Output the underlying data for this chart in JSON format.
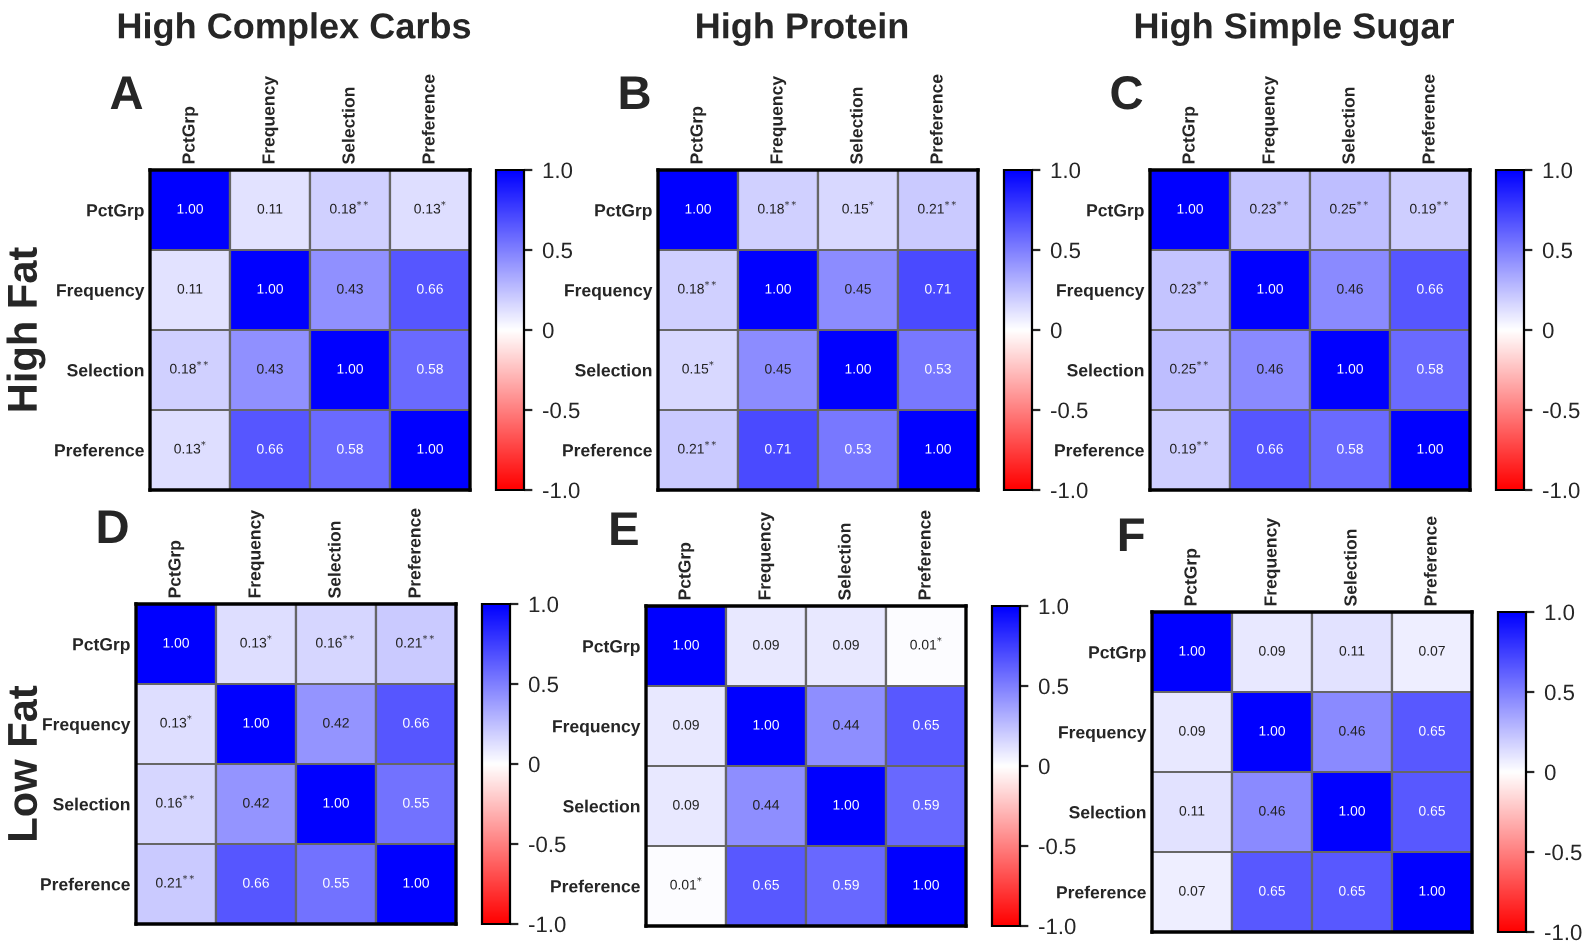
{
  "chart_data": [
    {
      "type": "heatmap",
      "title": "A",
      "subtitle": "High Complex Carbs",
      "ylabel": "High Fat",
      "categories": [
        "PctGrp",
        "Frequency",
        "Selection",
        "Preference"
      ],
      "y_categories": [
        "PctGrp",
        "Frequency",
        "Selection",
        "Preference"
      ],
      "cells": [
        [
          1.0,
          0.11,
          0.18,
          0.13
        ],
        [
          0.11,
          1.0,
          0.43,
          0.66
        ],
        [
          0.18,
          0.43,
          1.0,
          0.58
        ],
        [
          0.13,
          0.66,
          0.58,
          1.0
        ]
      ],
      "cell_labels": [
        [
          "1.00",
          "0.11",
          "0.18$^{**}$",
          "0.13$^{*}$"
        ],
        [
          "0.11",
          "1.00",
          "0.43",
          "0.66"
        ],
        [
          "0.18$^{**}$",
          "0.43",
          "1.00",
          "0.58"
        ],
        [
          "0.13$^{*}$",
          "0.66",
          "0.58",
          "1.00"
        ]
      ],
      "clim": [
        -1,
        1
      ],
      "cticks": [
        {
          "value": -1,
          "label": "-1.0"
        },
        {
          "value": -0.5,
          "label": "-0.5"
        },
        0,
        {
          "value": 0.5,
          "label": "0.5"
        },
        {
          "value": 1,
          "label": "1.0"
        }
      ]
    },
    {
      "type": "heatmap",
      "title": "B",
      "subtitle": "High Protein",
      "categories": [
        "PctGrp",
        "Frequency",
        "Selection",
        "Preference"
      ],
      "y_categories": [
        "PctGrp",
        "Frequency",
        "Selection",
        "Preference"
      ],
      "cells": [
        [
          1.0,
          0.18,
          0.15,
          0.21
        ],
        [
          0.18,
          1.0,
          0.45,
          0.71
        ],
        [
          0.15,
          0.45,
          1.0,
          0.53
        ],
        [
          0.21,
          0.71,
          0.53,
          1.0
        ]
      ],
      "cell_labels": [
        [
          "1.00",
          "0.18$^{**}$",
          "0.15$^{*}$",
          "0.21$^{**}$"
        ],
        [
          "0.18$^{**}$",
          "1.00",
          "0.45",
          "0.71"
        ],
        [
          "0.15$^{*}$",
          "0.45",
          "1.00",
          "0.53"
        ],
        [
          "0.21$^{**}$",
          "0.71",
          "0.53",
          "1.00"
        ]
      ],
      "clim": [
        -1,
        1
      ],
      "cticks": [
        {
          "value": -1,
          "label": "-1.0"
        },
        {
          "value": -0.5,
          "label": "-0.5"
        },
        0,
        {
          "value": 0.5,
          "label": "0.5"
        },
        {
          "value": 1,
          "label": "1.0"
        }
      ]
    },
    {
      "type": "heatmap",
      "title": "C",
      "subtitle": "High Simple Sugar",
      "categories": [
        "PctGrp",
        "Frequency",
        "Selection",
        "Preference"
      ],
      "y_categories": [
        "PctGrp",
        "Frequency",
        "Selection",
        "Preference"
      ],
      "cells": [
        [
          1.0,
          0.23,
          0.25,
          0.19
        ],
        [
          0.23,
          1.0,
          0.46,
          0.66
        ],
        [
          0.25,
          0.46,
          1.0,
          0.58
        ],
        [
          0.19,
          0.66,
          0.58,
          1.0
        ]
      ],
      "cell_labels": [
        [
          "1.00",
          "0.23$^{**}$",
          "0.25$^{**}$",
          "0.19$^{**}$"
        ],
        [
          "0.23$^{**}$",
          "1.00",
          "0.46",
          "0.66"
        ],
        [
          "0.25$^{**}$",
          "0.46",
          "1.00",
          "0.58"
        ],
        [
          "0.19$^{**}$",
          "0.66",
          "0.58",
          "1.00"
        ]
      ],
      "clim": [
        -1,
        1
      ],
      "cticks": [
        {
          "value": -1,
          "label": "-1.0"
        },
        {
          "value": -0.5,
          "label": "-0.5"
        },
        0,
        {
          "value": 0.5,
          "label": "0.5"
        },
        {
          "value": 1,
          "label": "1.0"
        }
      ]
    },
    {
      "type": "heatmap",
      "title": "D",
      "ylabel": "Low Fat",
      "categories": [
        "PctGrp",
        "Frequency",
        "Selection",
        "Preference"
      ],
      "y_categories": [
        "PctGrp",
        "Frequency",
        "Selection",
        "Preference"
      ],
      "cells": [
        [
          1.0,
          0.13,
          0.16,
          0.21
        ],
        [
          0.13,
          1.0,
          0.42,
          0.66
        ],
        [
          0.16,
          0.42,
          1.0,
          0.55
        ],
        [
          0.21,
          0.66,
          0.55,
          1.0
        ]
      ],
      "cell_labels": [
        [
          "1.00",
          "0.13$^{*}$",
          "0.16$^{**}$",
          "0.21$^{**}$"
        ],
        [
          "0.13$^{*}$",
          "1.00",
          "0.42",
          "0.66"
        ],
        [
          "0.16$^{**}$",
          "0.42",
          "1.00",
          "0.55"
        ],
        [
          "0.21$^{**}$",
          "0.66",
          "0.55",
          "1.00"
        ]
      ],
      "clim": [
        -1,
        1
      ],
      "cticks": [
        {
          "value": -1,
          "label": "-1.0"
        },
        {
          "value": -0.5,
          "label": "-0.5"
        },
        0,
        {
          "value": 0.5,
          "label": "0.5"
        },
        {
          "value": 1,
          "label": "1.0"
        }
      ]
    },
    {
      "type": "heatmap",
      "title": "E",
      "categories": [
        "PctGrp",
        "Frequency",
        "Selection",
        "Preference"
      ],
      "y_categories": [
        "PctGrp",
        "Frequency",
        "Selection",
        "Preference"
      ],
      "cells": [
        [
          1.0,
          0.09,
          0.09,
          0.01
        ],
        [
          0.09,
          1.0,
          0.44,
          0.65
        ],
        [
          0.09,
          0.44,
          1.0,
          0.59
        ],
        [
          0.01,
          0.65,
          0.59,
          1.0
        ]
      ],
      "cell_labels": [
        [
          "1.00",
          "0.09",
          "0.09",
          "0.01$^{*}$"
        ],
        [
          "0.09",
          "1.00",
          "0.44",
          "0.65"
        ],
        [
          "0.09",
          "0.44",
          "1.00",
          "0.59"
        ],
        [
          "0.01$^{*}$",
          "0.65",
          "0.59",
          "1.00"
        ]
      ],
      "clim": [
        -1,
        1
      ],
      "cticks": [
        {
          "value": -1,
          "label": "-1.0"
        },
        {
          "value": -0.5,
          "label": "-0.5"
        },
        0,
        {
          "value": 0.5,
          "label": "0.5"
        },
        {
          "value": 1,
          "label": "1.0"
        }
      ]
    },
    {
      "type": "heatmap",
      "title": "F",
      "categories": [
        "PctGrp",
        "Frequency",
        "Selection",
        "Preference"
      ],
      "y_categories": [
        "PctGrp",
        "Frequency",
        "Selection",
        "Preference"
      ],
      "cells": [
        [
          1.0,
          0.09,
          0.11,
          0.07
        ],
        [
          0.09,
          1.0,
          0.46,
          0.65
        ],
        [
          0.11,
          0.46,
          1.0,
          0.65
        ],
        [
          0.07,
          0.65,
          0.65,
          1.0
        ]
      ],
      "cell_labels": [
        [
          "1.00",
          "0.09",
          "0.11",
          "0.07"
        ],
        [
          "0.09",
          "1.00",
          "0.46",
          "0.65"
        ],
        [
          "0.11",
          "0.46",
          "1.00",
          "0.65"
        ],
        [
          "0.07",
          "0.65",
          "0.65",
          "1.00"
        ]
      ],
      "clim": [
        -1,
        1
      ],
      "cticks": [
        {
          "value": -1,
          "label": "-1.0"
        },
        {
          "value": -0.5,
          "label": "-0.5"
        },
        0,
        {
          "value": 0.5,
          "label": "0.5"
        },
        {
          "value": 1,
          "label": "1.0"
        }
      ]
    }
  ]
}
